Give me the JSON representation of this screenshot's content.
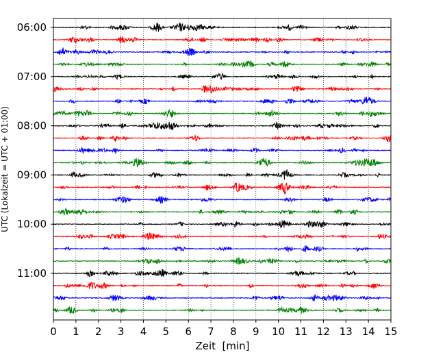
{
  "chart_data": {
    "type": "line",
    "title": "",
    "xlabel": "Zeit  [min]",
    "ylabel": "UTC (Lokalzeit = UTC + 01:00)",
    "xlim": [
      0,
      15
    ],
    "x_ticks": [
      0,
      1,
      2,
      3,
      4,
      5,
      6,
      7,
      8,
      9,
      10,
      11,
      12,
      13,
      14,
      15
    ],
    "y_tick_labels": [
      "06:00",
      "07:00",
      "08:00",
      "09:00",
      "10:00",
      "11:00"
    ],
    "grid_x": true,
    "trace_interval_minutes": 15,
    "start_time": "06:00",
    "trace_count": 24,
    "trace_colors": [
      "#000000",
      "#ff0000",
      "#0000ff",
      "#008000"
    ]
  }
}
